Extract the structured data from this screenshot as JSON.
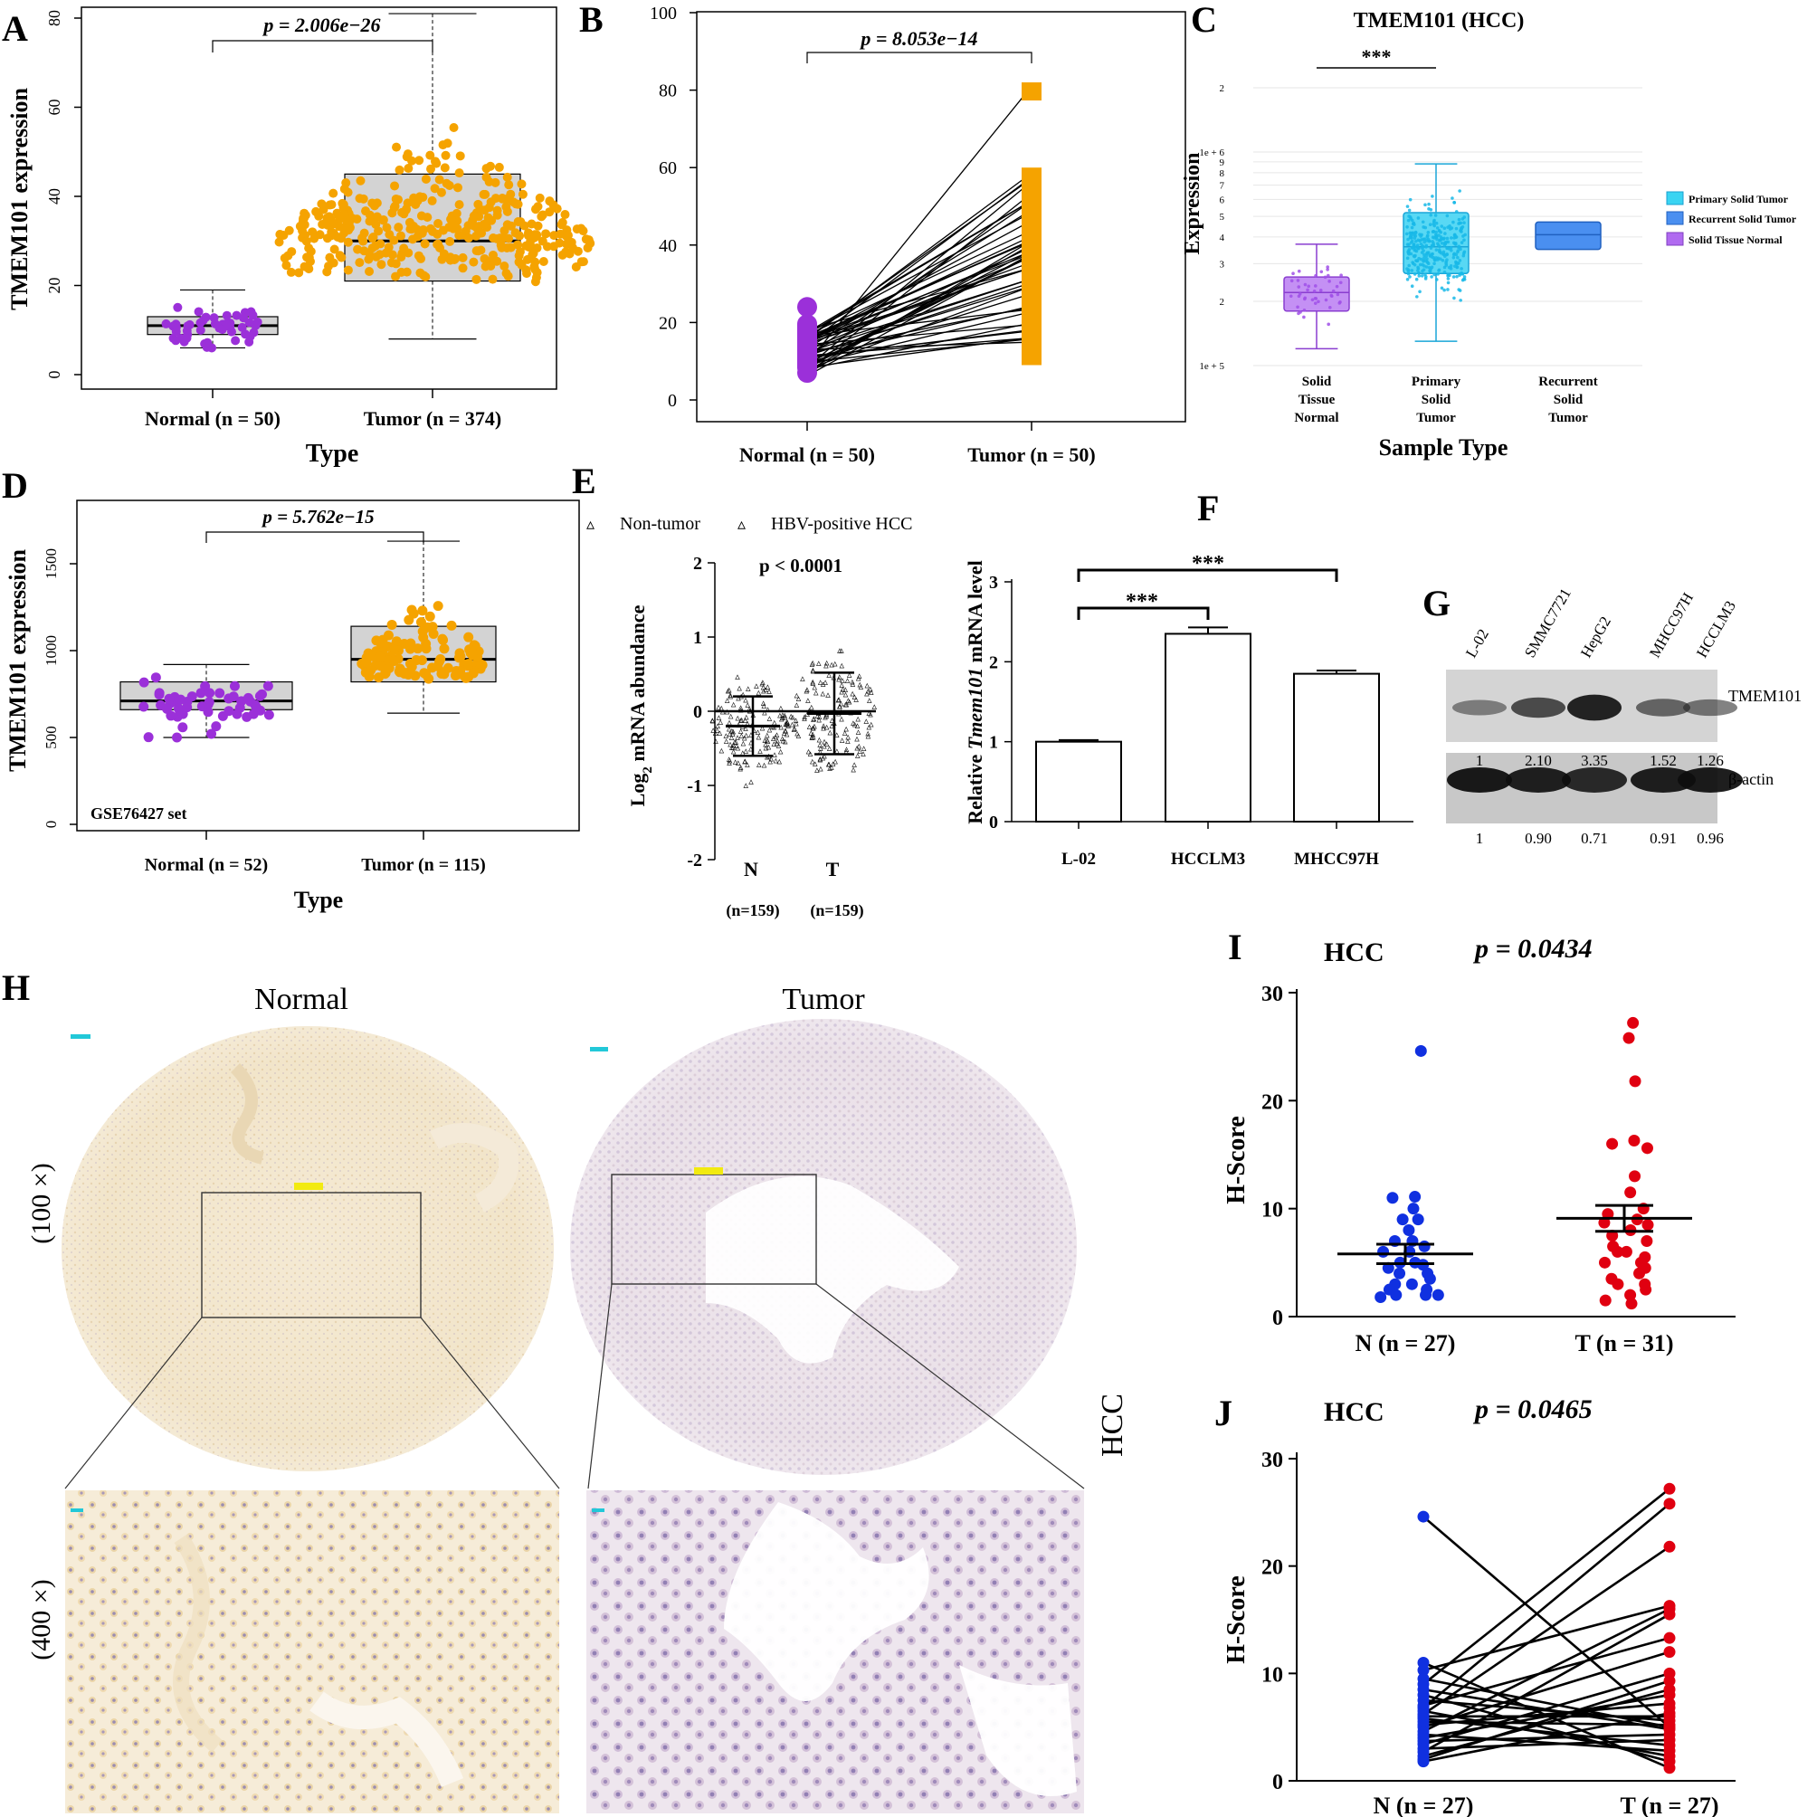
{
  "chart_data": [
    {
      "panel": "A",
      "type": "box-beeswarm",
      "ylabel": "TMEM101 expression",
      "xlabel": "Type",
      "categories": [
        "Normal (n = 50)",
        "Tumor (n = 374)"
      ],
      "yticks": [
        "0",
        "20",
        "40",
        "60",
        "80"
      ],
      "ylim": [
        -3,
        80
      ],
      "boxes": [
        {
          "name": "Normal",
          "q1": 9,
          "median": 11,
          "q3": 13,
          "min": 6,
          "max": 19,
          "n": 50,
          "color": "#9b30d9",
          "seed_lo": 6,
          "seed_hi": 24
        },
        {
          "name": "Tumor",
          "q1": 21,
          "median": 30,
          "q3": 45,
          "min": 8,
          "max": 81,
          "n": 374,
          "color": "#f5a300",
          "seed_lo": 8,
          "seed_hi": 82
        }
      ],
      "pvalue": "p = 2.006e−26"
    },
    {
      "panel": "B",
      "type": "paired-line",
      "categories": [
        "Normal (n = 50)",
        "Tumor (n = 50)"
      ],
      "yticks": [
        "0",
        "20",
        "40",
        "60",
        "80",
        "100"
      ],
      "ylim": [
        -3,
        100
      ],
      "normal_range": [
        6,
        24
      ],
      "tumor_range": [
        9,
        81
      ],
      "n": 50,
      "pvalue": "p = 8.053e−14"
    },
    {
      "panel": "C",
      "type": "box-jitter",
      "title": "TMEM101 (HCC)",
      "ylabel": "Expression",
      "xlabel": "Sample Type",
      "yticks": [
        "1e + 5",
        "2",
        "3",
        "4",
        "5",
        "6",
        "7",
        "8",
        "9",
        "1e + 6",
        "2"
      ],
      "categories": [
        "Solid Tissue Normal",
        "Primary Solid Tumor",
        "Recurrent Solid Tumor"
      ],
      "cat_lines": [
        [
          "Solid",
          "Tissue",
          "Normal"
        ],
        [
          "Primary",
          "Solid",
          "Tumor"
        ],
        [
          "Recurrent",
          "Solid",
          "Tumor"
        ]
      ],
      "boxes": [
        {
          "name": "Solid Tissue Normal",
          "q1": 1.8,
          "median": 2.2,
          "q3": 2.6,
          "min": 1.2,
          "max": 3.7,
          "n": 50
        },
        {
          "name": "Primary Solid Tumor",
          "q1": 2.7,
          "median": 3.6,
          "q3": 5.2,
          "min": 1.3,
          "max": 8.8,
          "n": 371
        },
        {
          "name": "Recurrent Solid Tumor",
          "q1": 3.5,
          "median": 4.1,
          "q3": 4.7,
          "min": 3.5,
          "max": 4.7,
          "n": 3
        }
      ],
      "legend": [
        "Primary Solid Tumor",
        "Recurrent Solid Tumor",
        "Solid Tissue Normal"
      ],
      "significance": "***"
    },
    {
      "panel": "D",
      "type": "box-beeswarm",
      "ylabel": "TMEM101 expression",
      "xlabel": "Type",
      "categories": [
        "Normal (n = 52)",
        "Tumor (n = 115)"
      ],
      "yticks": [
        "0",
        "500",
        "1000",
        "1500"
      ],
      "ylim": [
        -30,
        1750
      ],
      "boxes": [
        {
          "name": "Normal",
          "q1": 660,
          "median": 710,
          "q3": 820,
          "min": 500,
          "max": 920,
          "n": 52,
          "color": "#9b30d9",
          "seed_lo": 500,
          "seed_hi": 920
        },
        {
          "name": "Tumor",
          "q1": 820,
          "median": 950,
          "q3": 1140,
          "min": 640,
          "max": 1630,
          "n": 115,
          "color": "#f5a300",
          "seed_lo": 650,
          "seed_hi": 1700
        }
      ],
      "pvalue": "p = 5.762e−15",
      "annotation": "GSE76427 set"
    },
    {
      "panel": "E",
      "type": "scatter-dot",
      "ylabel": "Log2 mRNA abundance",
      "categories": [
        "N",
        "T"
      ],
      "counts": [
        "(n=159)",
        "(n=159)"
      ],
      "yticks": [
        "-2",
        "-1",
        "0",
        "1",
        "2"
      ],
      "ylim": [
        -2,
        2
      ],
      "series": [
        {
          "name": "Non-tumor",
          "mean": -0.2,
          "sd": 0.4,
          "lo": -1.2,
          "hi": 0.85,
          "color": "#2020e0"
        },
        {
          "name": "HBV-positive HCC",
          "mean": -0.03,
          "sd": 0.55,
          "lo": -1.55,
          "hi": 1.5,
          "color": "#e02020"
        }
      ],
      "pvalue": "p < 0.0001"
    },
    {
      "panel": "F",
      "type": "bar",
      "ylabel": "Relative Tmem101 mRNA level",
      "categories": [
        "L-02",
        "HCCLM3",
        "MHCC97H"
      ],
      "values": [
        1.0,
        2.35,
        1.85
      ],
      "errors": [
        0.02,
        0.08,
        0.04
      ],
      "yticks": [
        "0",
        "1",
        "2",
        "3"
      ],
      "ylim": [
        0,
        3
      ],
      "significance": [
        "***",
        "***"
      ]
    },
    {
      "panel": "I",
      "type": "scatter-dot",
      "title": "HCC",
      "pvalue": "p = 0.0434",
      "ylabel": "H-Score",
      "categories": [
        "N (n = 27)",
        "T (n = 31)"
      ],
      "yticks": [
        "0",
        "10",
        "20",
        "30"
      ],
      "ylim": [
        0,
        30
      ],
      "series": [
        {
          "name": "N",
          "mean": 5.8,
          "sem": 0.9,
          "values": [
            24.6,
            11.1,
            11.0,
            10.0,
            9.0,
            9.0,
            8.0,
            7.0,
            7.0,
            6.5,
            6.0,
            6.0,
            5.0,
            5.0,
            4.8,
            4.5,
            4.0,
            4.0,
            3.5,
            3.0,
            3.0,
            2.5,
            2.5,
            2.0,
            2.0,
            2.0,
            1.8
          ],
          "color": "#1030e0"
        },
        {
          "name": "T",
          "mean": 9.1,
          "sem": 1.2,
          "values": [
            27.2,
            25.8,
            21.8,
            16.3,
            16.0,
            15.6,
            13.0,
            11.5,
            10.0,
            9.5,
            9.0,
            8.7,
            8.5,
            8.0,
            7.5,
            7.0,
            6.5,
            6.0,
            6.0,
            5.5,
            5.0,
            5.0,
            4.5,
            4.0,
            3.5,
            3.0,
            3.0,
            2.5,
            2.0,
            1.5,
            1.2
          ],
          "color": "#e00010"
        }
      ]
    },
    {
      "panel": "J",
      "type": "paired-line",
      "title": "HCC",
      "pvalue": "p = 0.0465",
      "ylabel": "H-Score",
      "categories": [
        "N (n = 27)",
        "T (n = 27)"
      ],
      "yticks": [
        "0",
        "10",
        "20",
        "30"
      ],
      "ylim": [
        0,
        30
      ],
      "pairs": [
        [
          24.6,
          5.0
        ],
        [
          11.0,
          27.2
        ],
        [
          10.3,
          25.8
        ],
        [
          9.5,
          21.8
        ],
        [
          9.0,
          16.3
        ],
        [
          8.5,
          16.0
        ],
        [
          8.0,
          15.5
        ],
        [
          7.5,
          13.3
        ],
        [
          7.0,
          12.0
        ],
        [
          6.8,
          10.0
        ],
        [
          6.5,
          9.3
        ],
        [
          6.2,
          8.5
        ],
        [
          6.0,
          8.0
        ],
        [
          5.8,
          7.2
        ],
        [
          5.5,
          6.8
        ],
        [
          5.2,
          6.3
        ],
        [
          5.0,
          6.0
        ],
        [
          4.6,
          5.6
        ],
        [
          4.3,
          5.2
        ],
        [
          4.0,
          4.8
        ],
        [
          3.7,
          4.3
        ],
        [
          3.4,
          3.8
        ],
        [
          3.0,
          3.3
        ],
        [
          2.7,
          2.8
        ],
        [
          2.3,
          2.3
        ],
        [
          2.0,
          1.8
        ],
        [
          1.8,
          1.2
        ]
      ],
      "colors": [
        "#1030e0",
        "#e00010"
      ]
    }
  ],
  "panel_letters": {
    "A": "A",
    "B": "B",
    "C": "C",
    "D": "D",
    "E": "E",
    "F": "F",
    "G": "G",
    "H": "H",
    "I": "I",
    "J": "J"
  },
  "western_blot": {
    "lanes": [
      "L-02",
      "SMMC7721",
      "HepG2",
      "MHCC97H",
      "HCCLM3"
    ],
    "tmem_label": "TMEM101",
    "actin_label": "β-actin",
    "tmem_values": [
      "1",
      "2.10",
      "3.35",
      "1.52",
      "1.26"
    ],
    "actin_values": [
      "1",
      "0.90",
      "0.71",
      "0.91",
      "0.96"
    ]
  },
  "histology": {
    "col_normal": "Normal",
    "col_tumor": "Tumor",
    "row_100": "(100 ×)",
    "row_400": "(400 ×)",
    "side_label": "HCC"
  }
}
